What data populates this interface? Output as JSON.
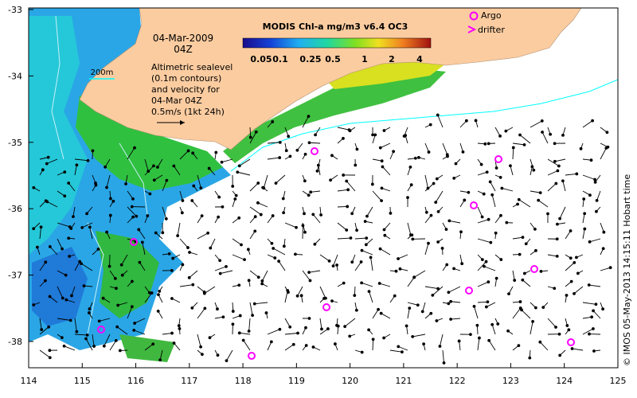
{
  "map": {
    "date_label": "04-Mar-2009",
    "time_label": "04Z",
    "contour_label": "200m",
    "info_lines": [
      "Altimetric sealevel",
      "(0.1m contours)",
      "and velocity for",
      "04-Mar 04Z",
      "0.5m/s (1kt 24h)"
    ],
    "colorbar": {
      "title": "MODIS Chl-a mg/m3 v6.4 OC3",
      "ticks": [
        "0.05",
        "0.1",
        "0.25",
        "0.5",
        "1",
        "2",
        "4"
      ]
    },
    "legend": {
      "argo_label": "Argo",
      "drifter_label": "drifter"
    },
    "credit": "© IMOS 05-May-2013 14:15:11 Hobart time",
    "x_ticks": [
      "114",
      "115",
      "116",
      "117",
      "118",
      "119",
      "120",
      "121",
      "122",
      "123",
      "124",
      "125"
    ],
    "y_ticks": [
      "-33",
      "-34",
      "-35",
      "-36",
      "-37",
      "-38"
    ],
    "colors": {
      "land": "#fbcca0",
      "argo": "#ff00ff",
      "contour": "#00ffff",
      "frame": "#000000"
    }
  }
}
